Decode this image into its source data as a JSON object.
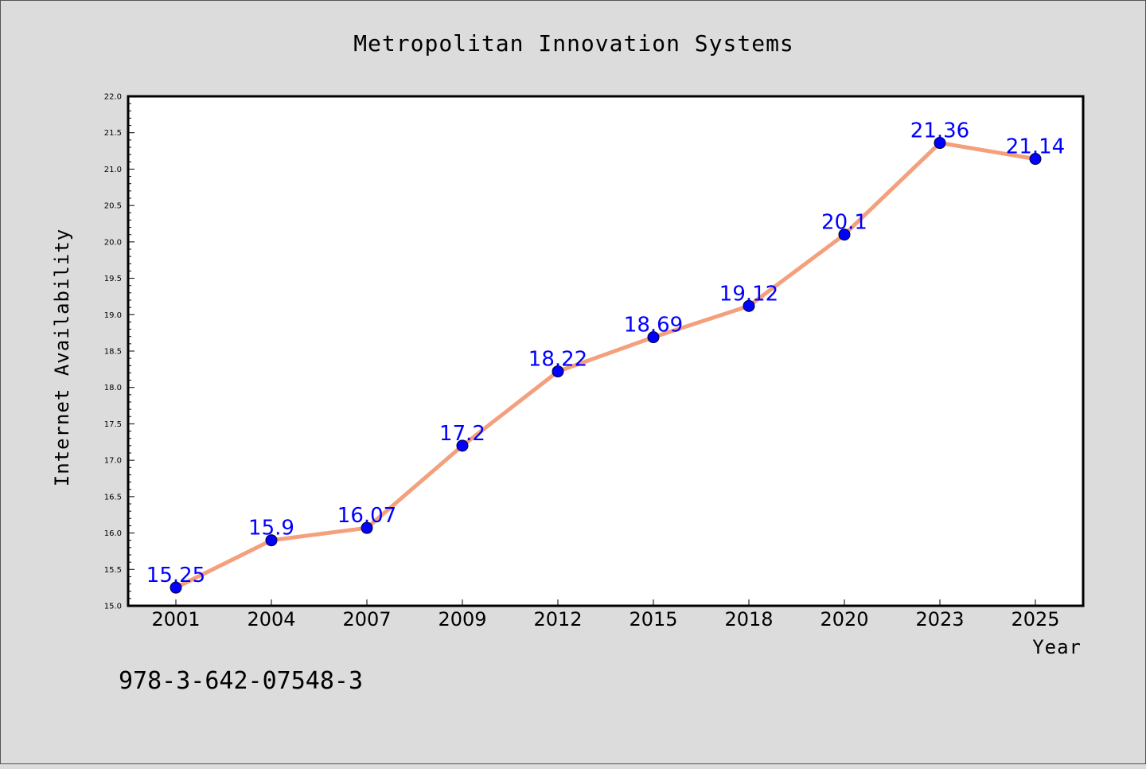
{
  "colors": {
    "background": "#dcdcdc",
    "plot_background": "#ffffff",
    "line": "#f4a07c",
    "marker": "#0000ff",
    "data_label": "#0000ff"
  },
  "footer_text": "978-3-642-07548-3",
  "chart_data": {
    "type": "line",
    "title": "Metropolitan Innovation Systems",
    "xlabel": "Year",
    "ylabel": "Internet Availability",
    "categories": [
      "2001",
      "2004",
      "2007",
      "2009",
      "2012",
      "2015",
      "2018",
      "2020",
      "2023",
      "2025"
    ],
    "series": [
      {
        "values": [
          15.25,
          15.9,
          16.07,
          17.2,
          18.22,
          18.69,
          19.12,
          20.1,
          21.36,
          21.14
        ],
        "labels": [
          "15.25",
          "15.9",
          "16.07",
          "17.2",
          "18.22",
          "18.69",
          "19.12",
          "20.1",
          "21.36",
          "21.14"
        ]
      }
    ],
    "ylim": [
      15.0,
      22.0
    ],
    "yticks": [
      "15.0",
      "15.5",
      "16.0",
      "16.5",
      "17.0",
      "17.5",
      "18.0",
      "18.5",
      "19.0",
      "19.5",
      "20.0",
      "20.5",
      "21.0",
      "21.5",
      "22.0"
    ],
    "grid": false,
    "legend": "none"
  }
}
